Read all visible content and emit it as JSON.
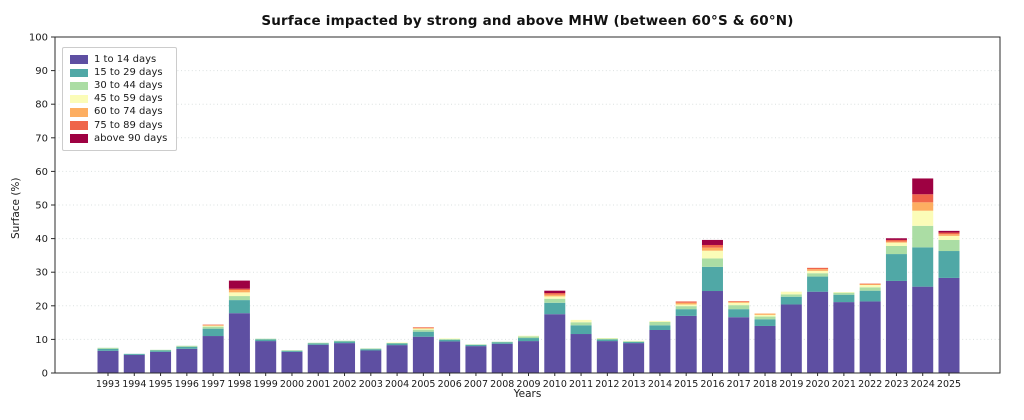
{
  "chart_data": {
    "type": "bar",
    "stacked": true,
    "title": "Surface impacted by strong and above MHW (between 60°S & 60°N)",
    "xlabel": "Years",
    "ylabel": "Surface (%)",
    "ylim": [
      0,
      100
    ],
    "yticks": [
      0,
      10,
      20,
      30,
      40,
      50,
      60,
      70,
      80,
      90,
      100
    ],
    "grid": "horizontal-dotted",
    "legend_position": "upper-left",
    "categories": [
      "1993",
      "1994",
      "1995",
      "1996",
      "1997",
      "1998",
      "1999",
      "2000",
      "2001",
      "2002",
      "2003",
      "2004",
      "2005",
      "2006",
      "2007",
      "2008",
      "2009",
      "2010",
      "2011",
      "2012",
      "2013",
      "2014",
      "2015",
      "2016",
      "2017",
      "2018",
      "2019",
      "2020",
      "2021",
      "2022",
      "2023",
      "2024",
      "2025"
    ],
    "series": [
      {
        "name": "1 to 14 days",
        "color": "#5e4fa2",
        "values": [
          6.6,
          5.4,
          6.3,
          7.2,
          11.0,
          17.8,
          9.5,
          6.3,
          8.4,
          8.9,
          6.7,
          8.3,
          10.8,
          9.4,
          8.0,
          8.7,
          9.5,
          17.5,
          11.6,
          9.5,
          8.9,
          12.8,
          17.0,
          24.4,
          16.6,
          14.0,
          20.4,
          24.2,
          21.1,
          21.3,
          27.4,
          25.7,
          28.3
        ]
      },
      {
        "name": "15 to 29 days",
        "color": "#50a8a6",
        "values": [
          0.6,
          0.3,
          0.4,
          0.6,
          2.2,
          3.9,
          0.5,
          0.3,
          0.4,
          0.5,
          0.4,
          0.5,
          1.5,
          0.5,
          0.4,
          0.5,
          0.9,
          3.4,
          2.6,
          0.5,
          0.4,
          1.4,
          2.0,
          7.2,
          2.4,
          2.0,
          2.3,
          4.5,
          2.2,
          3.2,
          8.0,
          11.7,
          8.0
        ]
      },
      {
        "name": "30 to 44 days",
        "color": "#abdda4",
        "values": [
          0.3,
          0.0,
          0.2,
          0.3,
          0.6,
          1.2,
          0.2,
          0.2,
          0.2,
          0.2,
          0.2,
          0.2,
          0.6,
          0.2,
          0.1,
          0.1,
          0.5,
          1.2,
          0.9,
          0.3,
          0.2,
          1.0,
          0.9,
          2.5,
          1.2,
          0.8,
          0.7,
          1.0,
          0.6,
          1.0,
          2.4,
          6.4,
          3.3
        ]
      },
      {
        "name": "45 to 59 days",
        "color": "#fbfcb8",
        "values": [
          0.0,
          0.0,
          0.0,
          0.0,
          0.3,
          1.1,
          0.0,
          0.0,
          0.0,
          0.0,
          0.0,
          0.1,
          0.3,
          0.2,
          0.0,
          0.0,
          0.2,
          0.7,
          0.7,
          0.1,
          0.1,
          0.3,
          0.5,
          2.3,
          0.7,
          0.5,
          0.8,
          0.7,
          0.2,
          0.7,
          1.0,
          4.5,
          1.2
        ]
      },
      {
        "name": "60 to 74 days",
        "color": "#fdae61",
        "values": [
          0.0,
          0.0,
          0.0,
          0.0,
          0.2,
          0.7,
          0.0,
          0.0,
          0.0,
          0.0,
          0.0,
          0.0,
          0.2,
          0.0,
          0.0,
          0.0,
          0.0,
          0.5,
          0.0,
          0.0,
          0.0,
          0.0,
          0.5,
          0.9,
          0.3,
          0.4,
          0.0,
          0.5,
          0.0,
          0.3,
          0.3,
          2.5,
          0.5
        ]
      },
      {
        "name": "75 to 89 days",
        "color": "#ef654a",
        "values": [
          0.0,
          0.0,
          0.0,
          0.0,
          0.1,
          0.4,
          0.0,
          0.0,
          0.0,
          0.0,
          0.0,
          0.0,
          0.2,
          0.0,
          0.0,
          0.0,
          0.0,
          0.5,
          0.0,
          0.0,
          0.0,
          0.0,
          0.4,
          0.8,
          0.2,
          0.0,
          0.0,
          0.4,
          0.0,
          0.1,
          0.5,
          2.4,
          0.5
        ]
      },
      {
        "name": "above 90 days",
        "color": "#9e0142",
        "values": [
          0.0,
          0.0,
          0.0,
          0.0,
          0.0,
          2.4,
          0.0,
          0.0,
          0.0,
          0.0,
          0.0,
          0.0,
          0.0,
          0.0,
          0.0,
          0.0,
          0.0,
          0.7,
          0.0,
          0.0,
          0.0,
          0.0,
          0.0,
          1.5,
          0.0,
          0.0,
          0.0,
          0.0,
          0.0,
          0.0,
          0.5,
          4.7,
          0.5
        ]
      }
    ],
    "style": {
      "grid_color": "#dbe1e0",
      "spine_color": "#2b2b2b",
      "tick_label_color": "#1a1a1a",
      "background": "#ffffff"
    }
  }
}
